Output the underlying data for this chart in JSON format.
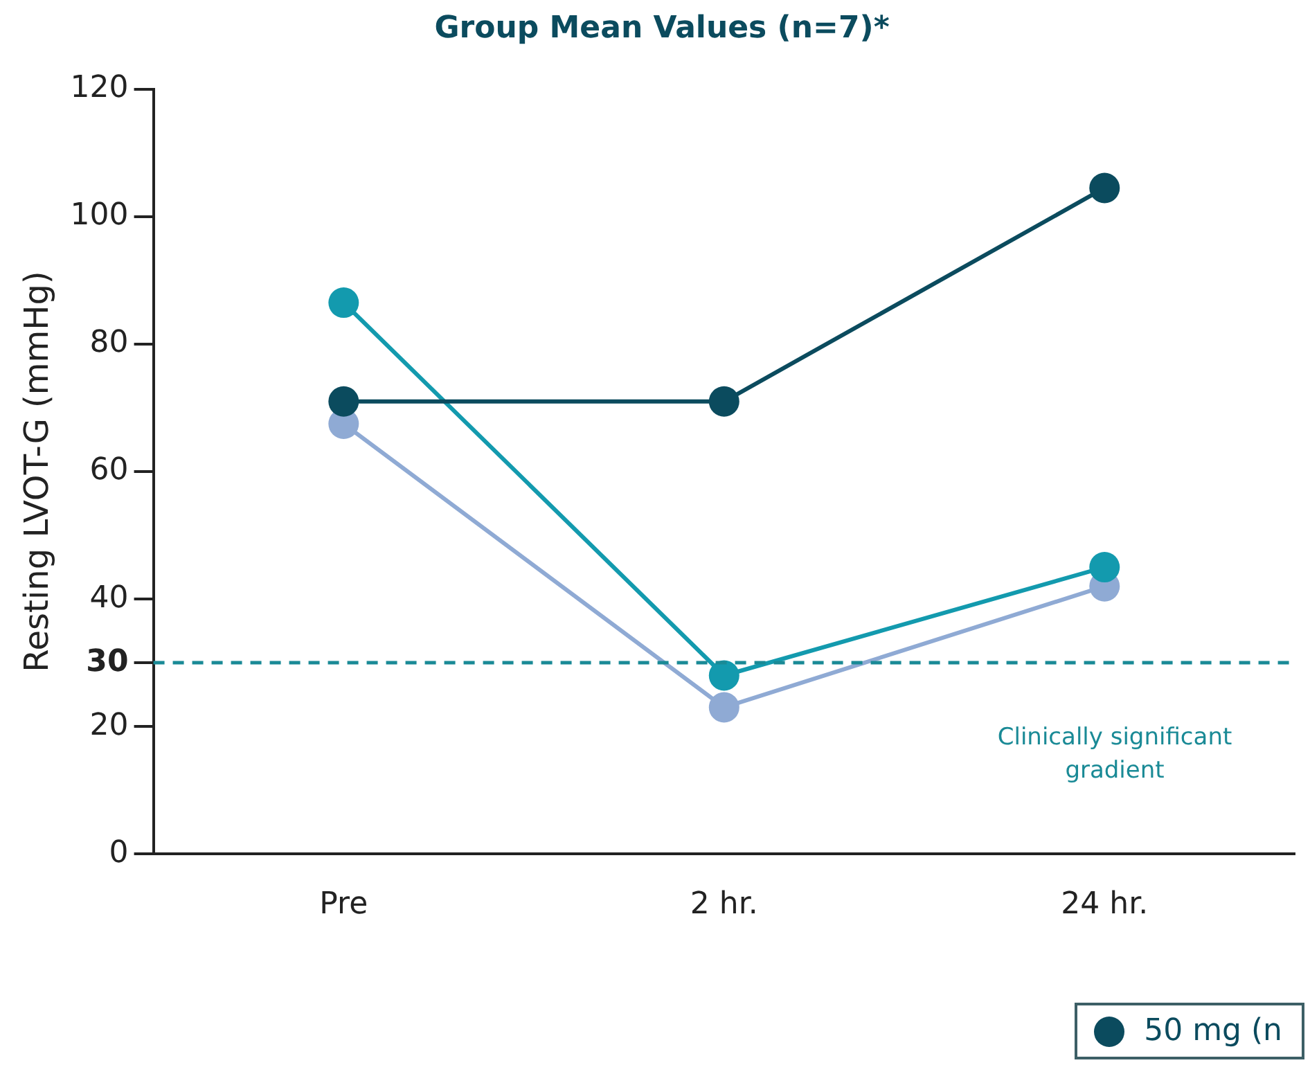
{
  "chart_data": {
    "type": "line",
    "title": "Group Mean Values (n=7)*",
    "ylabel": "Resting LVOT-G (mmHg)",
    "categories": [
      "Pre",
      "2 hr.",
      "24 hr."
    ],
    "series": [
      {
        "name": "50 mg (n",
        "color": "#0b4b5e",
        "values": [
          71,
          71,
          104.5
        ]
      },
      {
        "color": "#139aae",
        "values": [
          86.5,
          28,
          45
        ]
      },
      {
        "color": "#8faad4",
        "values": [
          67.5,
          23,
          42
        ]
      }
    ],
    "ylim": [
      0,
      120
    ],
    "yticks": [
      0,
      20,
      30,
      40,
      60,
      80,
      100,
      120
    ],
    "ref_lines": [
      {
        "axis": "y",
        "value": 30,
        "label": "Clinically significant gradient",
        "color": "#1a8a96",
        "line_style": "dashed"
      }
    ],
    "legend": "bottom right",
    "marker": "circle",
    "line_style": "solid",
    "grid": false
  }
}
